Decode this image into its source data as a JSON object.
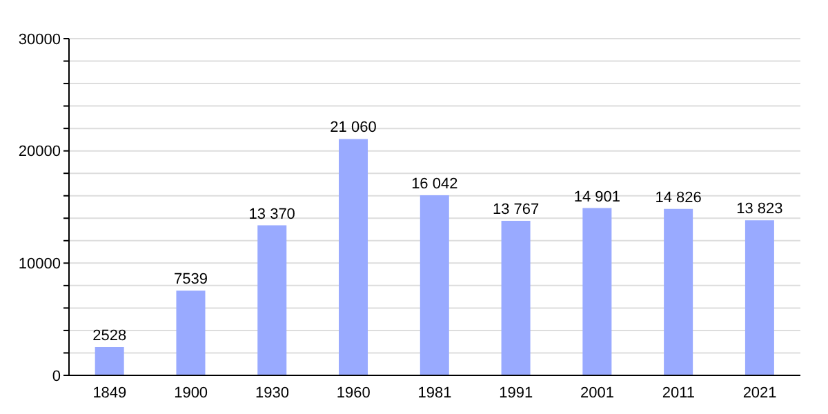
{
  "chart_data": {
    "type": "bar",
    "categories": [
      "1849",
      "1900",
      "1930",
      "1960",
      "1981",
      "1991",
      "2001",
      "2011",
      "2021"
    ],
    "values": [
      2528,
      7539,
      13370,
      21060,
      16042,
      13767,
      14901,
      14826,
      13823
    ],
    "value_labels": [
      "2528",
      "7539",
      "13 370",
      "21 060",
      "16 042",
      "13 767",
      "14 901",
      "14 826",
      "13 823"
    ],
    "color": "#99aaff",
    "ylim": [
      0,
      30000
    ],
    "yticks": [
      0,
      {
        "value": 2000,
        "label": null
      },
      {
        "value": 4000,
        "label": null
      },
      {
        "value": 6000,
        "label": null
      },
      {
        "value": 8000,
        "label": null
      },
      10000,
      {
        "value": 12000,
        "label": null
      },
      {
        "value": 14000,
        "label": null
      },
      {
        "value": 16000,
        "label": null
      },
      {
        "value": 18000,
        "label": null
      },
      20000,
      {
        "value": 22000,
        "label": null
      },
      {
        "value": 24000,
        "label": null
      },
      {
        "value": 26000,
        "label": null
      },
      {
        "value": 28000,
        "label": null
      },
      30000
    ],
    "grid": true
  }
}
